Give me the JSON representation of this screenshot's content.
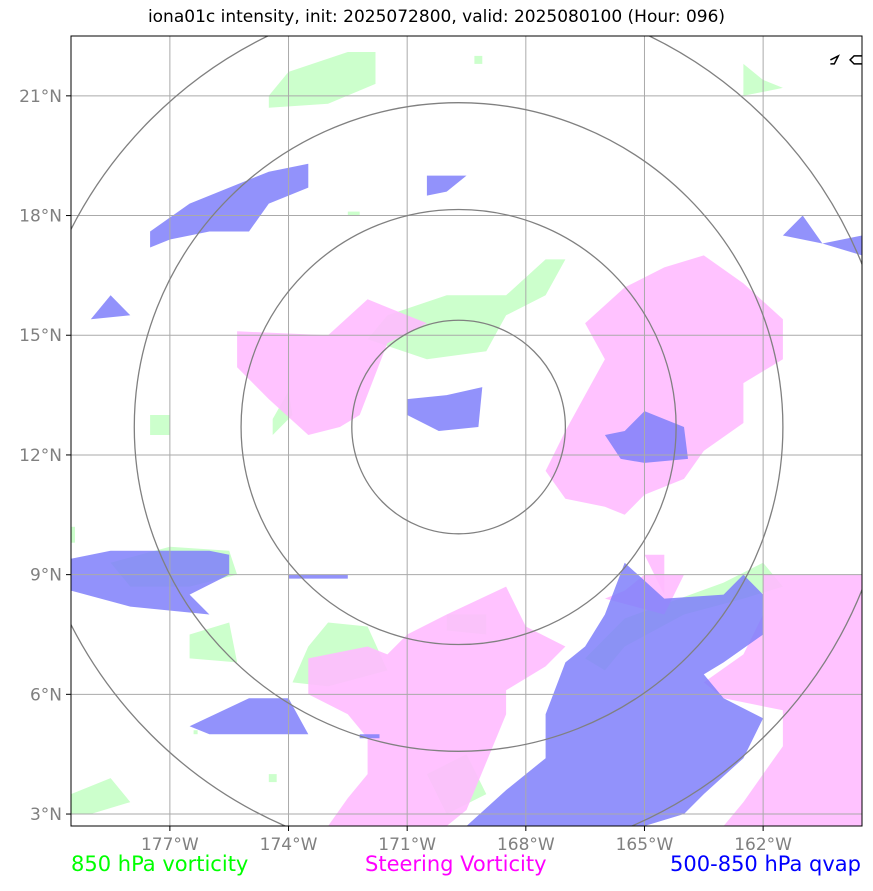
{
  "title": "iona01c intensity, init: 2025072800, valid: 2025080100 (Hour: 096)",
  "map": {
    "lon_range": [
      -179.5,
      -159.5
    ],
    "lat_range": [
      2.7,
      22.5
    ],
    "lon_ticks": [
      {
        "value": -177,
        "label": "177°W"
      },
      {
        "value": -174,
        "label": "174°W"
      },
      {
        "value": -171,
        "label": "171°W"
      },
      {
        "value": -168,
        "label": "168°W"
      },
      {
        "value": -165,
        "label": "165°W"
      },
      {
        "value": -162,
        "label": "162°W"
      }
    ],
    "lat_ticks": [
      {
        "value": 21,
        "label": "21°N"
      },
      {
        "value": 18,
        "label": "18°N"
      },
      {
        "value": 15,
        "label": "15°N"
      },
      {
        "value": 12,
        "label": "12°N"
      },
      {
        "value": 9,
        "label": "9°N"
      },
      {
        "value": 6,
        "label": "6°N"
      },
      {
        "value": 3,
        "label": "3°N"
      }
    ],
    "storm_center": {
      "lon": -169.7,
      "lat": 12.7
    },
    "range_rings_deg": [
      2.7,
      5.5,
      8.2,
      11.0
    ],
    "grid": true
  },
  "layers": {
    "vort850": {
      "color": "#ccffcc",
      "polygons": [
        [
          [
            -174.5,
            21.0
          ],
          [
            -174.0,
            21.6
          ],
          [
            -172.5,
            22.1
          ],
          [
            -171.8,
            22.1
          ],
          [
            -171.8,
            21.3
          ],
          [
            -173.0,
            20.8
          ],
          [
            -174.5,
            20.7
          ]
        ],
        [
          [
            -169.3,
            22.0
          ],
          [
            -169.1,
            22.0
          ],
          [
            -169.1,
            21.8
          ],
          [
            -169.3,
            21.8
          ]
        ],
        [
          [
            -162.5,
            21.8
          ],
          [
            -162.0,
            21.4
          ],
          [
            -161.5,
            21.2
          ],
          [
            -162.5,
            21.0
          ]
        ],
        [
          [
            -172.5,
            18.0
          ],
          [
            -172.2,
            18.0
          ],
          [
            -172.2,
            18.1
          ],
          [
            -172.5,
            18.1
          ]
        ],
        [
          [
            -171.5,
            15.5
          ],
          [
            -170.0,
            16.0
          ],
          [
            -168.5,
            16.0
          ],
          [
            -167.5,
            16.9
          ],
          [
            -167.0,
            16.9
          ],
          [
            -167.5,
            16.0
          ],
          [
            -168.5,
            15.5
          ],
          [
            -169.0,
            14.6
          ],
          [
            -170.5,
            14.4
          ],
          [
            -172.0,
            14.9
          ]
        ],
        [
          [
            -177.5,
            13.0
          ],
          [
            -177.0,
            13.0
          ],
          [
            -177.0,
            12.5
          ],
          [
            -177.5,
            12.5
          ]
        ],
        [
          [
            -174.4,
            12.9
          ],
          [
            -174.0,
            13.6
          ],
          [
            -173.9,
            13.0
          ],
          [
            -174.4,
            12.5
          ]
        ],
        [
          [
            -178.5,
            9.3
          ],
          [
            -177.0,
            9.7
          ],
          [
            -175.5,
            9.6
          ],
          [
            -175.3,
            9.0
          ],
          [
            -176.5,
            8.7
          ],
          [
            -178.0,
            8.7
          ]
        ],
        [
          [
            -176.5,
            7.5
          ],
          [
            -175.5,
            7.8
          ],
          [
            -175.3,
            6.8
          ],
          [
            -176.5,
            6.9
          ]
        ],
        [
          [
            -173.5,
            7.2
          ],
          [
            -173.0,
            7.8
          ],
          [
            -172.0,
            7.7
          ],
          [
            -171.5,
            6.6
          ],
          [
            -173.0,
            6.2
          ],
          [
            -173.9,
            6.3
          ]
        ],
        [
          [
            -170.0,
            8.0
          ],
          [
            -169.0,
            8.0
          ],
          [
            -169.0,
            7.5
          ],
          [
            -170.0,
            7.6
          ]
        ],
        [
          [
            -166.5,
            6.9
          ],
          [
            -165.5,
            7.9
          ],
          [
            -163.0,
            8.8
          ],
          [
            -162.0,
            9.3
          ],
          [
            -161.5,
            8.7
          ],
          [
            -162.5,
            8.4
          ],
          [
            -164.0,
            8.0
          ],
          [
            -165.5,
            7.2
          ],
          [
            -166.0,
            6.6
          ]
        ],
        [
          [
            -179.5,
            3.5
          ],
          [
            -178.5,
            3.9
          ],
          [
            -178.0,
            3.3
          ],
          [
            -179.0,
            3.0
          ],
          [
            -179.5,
            3.0
          ]
        ],
        [
          [
            -169.5,
            4.5
          ],
          [
            -169.0,
            3.5
          ],
          [
            -170.0,
            3.0
          ],
          [
            -170.5,
            4.0
          ]
        ],
        [
          [
            -179.5,
            10.2
          ],
          [
            -179.4,
            10.2
          ],
          [
            -179.4,
            9.8
          ],
          [
            -179.5,
            9.8
          ]
        ],
        [
          [
            -176.4,
            5.1
          ],
          [
            -176.3,
            5.1
          ],
          [
            -176.3,
            5.0
          ],
          [
            -176.4,
            5.0
          ]
        ],
        [
          [
            -174.5,
            4.0
          ],
          [
            -174.3,
            4.0
          ],
          [
            -174.3,
            3.8
          ],
          [
            -174.5,
            3.8
          ]
        ]
      ]
    },
    "steering": {
      "color": "#ffbbff",
      "polygons": [
        [
          [
            -173.0,
            15.0
          ],
          [
            -172.0,
            15.9
          ],
          [
            -170.5,
            15.3
          ],
          [
            -171.5,
            14.8
          ],
          [
            -172.2,
            13.0
          ],
          [
            -172.7,
            12.7
          ],
          [
            -173.5,
            12.5
          ],
          [
            -174.5,
            13.4
          ],
          [
            -175.3,
            14.2
          ],
          [
            -175.3,
            15.1
          ]
        ],
        [
          [
            -163.5,
            17.0
          ],
          [
            -162.5,
            16.3
          ],
          [
            -161.5,
            15.4
          ],
          [
            -161.5,
            14.4
          ],
          [
            -162.5,
            13.8
          ],
          [
            -162.5,
            12.8
          ],
          [
            -163.5,
            12.1
          ],
          [
            -164.0,
            11.4
          ],
          [
            -165.0,
            11.0
          ],
          [
            -165.5,
            10.5
          ],
          [
            -166.0,
            10.7
          ],
          [
            -167.0,
            10.9
          ],
          [
            -167.5,
            11.6
          ],
          [
            -167.0,
            12.6
          ],
          [
            -166.5,
            13.5
          ],
          [
            -166.0,
            14.4
          ],
          [
            -166.5,
            15.3
          ],
          [
            -165.5,
            16.2
          ],
          [
            -164.5,
            16.7
          ]
        ],
        [
          [
            -168.5,
            8.7
          ],
          [
            -168.0,
            7.7
          ],
          [
            -167.0,
            7.2
          ],
          [
            -167.5,
            6.7
          ],
          [
            -168.5,
            6.1
          ],
          [
            -168.5,
            5.5
          ],
          [
            -169.0,
            4.3
          ],
          [
            -169.5,
            3.1
          ],
          [
            -170.0,
            2.7
          ],
          [
            -173.0,
            2.7
          ],
          [
            -172.5,
            3.4
          ],
          [
            -172.0,
            4.0
          ],
          [
            -172.0,
            4.9
          ],
          [
            -172.5,
            5.5
          ],
          [
            -173.5,
            6.0
          ],
          [
            -173.5,
            6.9
          ],
          [
            -172.0,
            7.2
          ],
          [
            -171.5,
            7.0
          ],
          [
            -171.0,
            7.5
          ],
          [
            -170.0,
            8.0
          ]
        ],
        [
          [
            -166.0,
            8.4
          ],
          [
            -165.5,
            8.6
          ],
          [
            -165.0,
            9.0
          ],
          [
            -164.0,
            9.0
          ],
          [
            -164.5,
            8.0
          ]
        ],
        [
          [
            -162.0,
            9.0
          ],
          [
            -159.5,
            9.0
          ],
          [
            -159.5,
            2.7
          ],
          [
            -163.0,
            2.7
          ],
          [
            -162.5,
            3.3
          ],
          [
            -162.0,
            4.0
          ],
          [
            -161.5,
            4.7
          ],
          [
            -161.5,
            5.6
          ],
          [
            -163.0,
            5.9
          ],
          [
            -163.5,
            6.3
          ],
          [
            -162.5,
            7.0
          ],
          [
            -162.0,
            8.0
          ]
        ],
        [
          [
            -165.0,
            9.5
          ],
          [
            -164.5,
            9.5
          ],
          [
            -164.5,
            8.5
          ]
        ]
      ]
    },
    "qvap": {
      "color": "#7f7ffa",
      "polygons": [
        [
          [
            -176.5,
            18.3
          ],
          [
            -175.5,
            18.7
          ],
          [
            -174.5,
            19.1
          ],
          [
            -173.5,
            19.3
          ],
          [
            -173.5,
            18.7
          ],
          [
            -174.5,
            18.3
          ],
          [
            -175.0,
            17.6
          ],
          [
            -176.0,
            17.6
          ],
          [
            -177.0,
            17.4
          ],
          [
            -177.5,
            17.2
          ],
          [
            -177.5,
            17.6
          ]
        ],
        [
          [
            -170.5,
            19.0
          ],
          [
            -169.5,
            19.0
          ],
          [
            -170.0,
            18.6
          ],
          [
            -170.5,
            18.5
          ]
        ],
        [
          [
            -161.0,
            18.0
          ],
          [
            -160.5,
            17.3
          ],
          [
            -159.5,
            17.0
          ],
          [
            -159.5,
            17.5
          ],
          [
            -160.5,
            17.3
          ],
          [
            -161.5,
            17.5
          ]
        ],
        [
          [
            -178.5,
            16.0
          ],
          [
            -178.0,
            15.5
          ],
          [
            -179.0,
            15.4
          ]
        ],
        [
          [
            -170.0,
            13.5
          ],
          [
            -169.1,
            13.7
          ],
          [
            -169.2,
            12.7
          ],
          [
            -170.2,
            12.6
          ],
          [
            -171.0,
            13.0
          ],
          [
            -171.0,
            13.4
          ]
        ],
        [
          [
            -165.5,
            12.6
          ],
          [
            -165.0,
            13.1
          ],
          [
            -164.0,
            12.7
          ],
          [
            -163.9,
            11.9
          ],
          [
            -165.0,
            11.8
          ],
          [
            -165.6,
            11.9
          ],
          [
            -166.0,
            12.5
          ]
        ],
        [
          [
            -178.5,
            9.6
          ],
          [
            -176.0,
            9.6
          ],
          [
            -175.5,
            9.5
          ],
          [
            -175.5,
            9.0
          ],
          [
            -176.5,
            8.5
          ],
          [
            -176.0,
            8.0
          ],
          [
            -178.0,
            8.2
          ],
          [
            -179.5,
            8.6
          ],
          [
            -179.5,
            9.4
          ]
        ],
        [
          [
            -174.0,
            9.0
          ],
          [
            -172.5,
            9.0
          ],
          [
            -172.5,
            8.9
          ],
          [
            -174.0,
            8.9
          ]
        ],
        [
          [
            -175.0,
            5.9
          ],
          [
            -174.0,
            5.9
          ],
          [
            -173.5,
            5.0
          ],
          [
            -176.0,
            5.0
          ],
          [
            -176.5,
            5.2
          ]
        ],
        [
          [
            -172.2,
            5.0
          ],
          [
            -171.7,
            5.0
          ],
          [
            -171.7,
            4.9
          ],
          [
            -172.2,
            4.9
          ]
        ],
        [
          [
            -165.5,
            9.3
          ],
          [
            -164.5,
            8.4
          ],
          [
            -163.0,
            8.5
          ],
          [
            -162.5,
            9.0
          ],
          [
            -162.0,
            8.5
          ],
          [
            -162.0,
            7.5
          ],
          [
            -163.0,
            6.8
          ],
          [
            -163.5,
            6.5
          ],
          [
            -163.0,
            5.9
          ],
          [
            -162.0,
            5.4
          ],
          [
            -162.5,
            4.4
          ],
          [
            -163.5,
            3.5
          ],
          [
            -164.0,
            3.0
          ],
          [
            -165.0,
            2.7
          ],
          [
            -169.5,
            2.7
          ],
          [
            -168.5,
            3.6
          ],
          [
            -167.5,
            4.4
          ],
          [
            -167.5,
            5.5
          ],
          [
            -167.0,
            6.8
          ],
          [
            -166.5,
            7.2
          ],
          [
            -166.0,
            8.0
          ]
        ]
      ]
    },
    "coast": {
      "color": "#000000",
      "polylines": [
        [
          [
            -159.5,
            22.0
          ],
          [
            -159.7,
            22.0
          ],
          [
            -159.8,
            21.9
          ],
          [
            -159.7,
            21.8
          ],
          [
            -159.5,
            21.8
          ]
        ],
        [
          [
            -160.3,
            21.9
          ],
          [
            -160.1,
            22.0
          ],
          [
            -160.2,
            21.8
          ],
          [
            -160.3,
            21.8
          ]
        ]
      ]
    }
  },
  "legend": {
    "green_label": "850 hPa vorticity",
    "magenta_label": "Steering Vorticity",
    "blue_label": "500-850 hPa qvap"
  }
}
